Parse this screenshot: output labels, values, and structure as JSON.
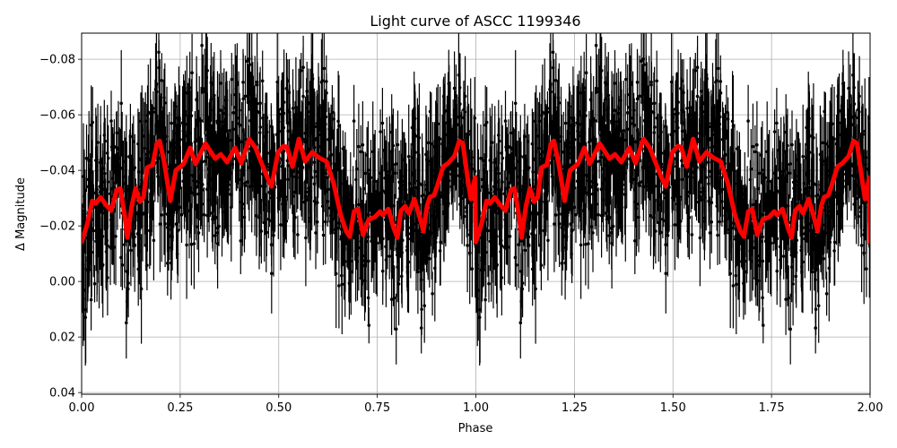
{
  "chart_data": {
    "type": "line",
    "title": "Light curve of ASCC 1199346",
    "xlabel": "Phase",
    "ylabel": "Δ Magnitude",
    "xlim": [
      0.0,
      2.0
    ],
    "ylim": [
      0.0406,
      -0.0894
    ],
    "y_inverted": true,
    "grid": true,
    "legend": null,
    "xticks": [
      "0.00",
      "0.25",
      "0.50",
      "0.75",
      "1.00",
      "1.25",
      "1.50",
      "1.75",
      "2.00"
    ],
    "xtick_values": [
      0.0,
      0.25,
      0.5,
      0.75,
      1.0,
      1.25,
      1.5,
      1.75,
      2.0
    ],
    "yticks": [
      "−0.08",
      "−0.06",
      "−0.04",
      "−0.02",
      "0.00",
      "0.02",
      "0.04"
    ],
    "ytick_values": [
      -0.08,
      -0.06,
      -0.04,
      -0.02,
      0.0,
      0.02,
      0.04
    ],
    "series": [
      {
        "name": "observations",
        "style": "black points with vertical error bars",
        "color": "#000000",
        "description": "Dense scatter of ~thousands of phase-folded photometric points spanning roughly -0.09 to +0.04 mag with error bars, repeated over two phase cycles",
        "approx_range": [
          -0.09,
          0.04
        ]
      },
      {
        "name": "smoothed model",
        "style": "thick red line",
        "color": "#ff0000",
        "period_repeat": true,
        "phase": [
          0.0,
          0.014,
          0.027,
          0.036,
          0.048,
          0.061,
          0.075,
          0.089,
          0.098,
          0.109,
          0.116,
          0.127,
          0.137,
          0.148,
          0.157,
          0.166,
          0.18,
          0.191,
          0.198,
          0.209,
          0.225,
          0.239,
          0.259,
          0.275,
          0.289,
          0.314,
          0.339,
          0.353,
          0.369,
          0.389,
          0.405,
          0.425,
          0.441,
          0.471,
          0.482,
          0.498,
          0.512,
          0.521,
          0.535,
          0.551,
          0.567,
          0.585,
          0.603,
          0.621,
          0.639,
          0.657,
          0.671,
          0.68,
          0.691,
          0.701,
          0.714,
          0.728,
          0.744,
          0.757,
          0.764,
          0.778,
          0.792,
          0.801,
          0.81,
          0.821,
          0.83,
          0.844,
          0.855,
          0.867,
          0.876,
          0.883,
          0.894,
          0.901,
          0.917,
          0.93,
          0.946,
          0.958,
          0.967,
          0.978,
          0.987,
          0.998
        ],
        "values": [
          -0.0142,
          -0.0206,
          -0.029,
          -0.0281,
          -0.0303,
          -0.0277,
          -0.0255,
          -0.0329,
          -0.0335,
          -0.0239,
          -0.0158,
          -0.0271,
          -0.0335,
          -0.0287,
          -0.0303,
          -0.041,
          -0.0419,
          -0.0497,
          -0.0506,
          -0.0432,
          -0.029,
          -0.04,
          -0.0423,
          -0.0481,
          -0.0423,
          -0.0497,
          -0.0442,
          -0.0458,
          -0.0429,
          -0.0481,
          -0.0426,
          -0.0513,
          -0.0481,
          -0.0374,
          -0.0342,
          -0.0465,
          -0.0487,
          -0.0484,
          -0.0413,
          -0.0513,
          -0.0432,
          -0.0465,
          -0.0445,
          -0.0432,
          -0.0355,
          -0.0239,
          -0.0181,
          -0.0161,
          -0.0252,
          -0.0261,
          -0.0168,
          -0.0223,
          -0.0232,
          -0.0252,
          -0.0239,
          -0.0261,
          -0.019,
          -0.0158,
          -0.0255,
          -0.0271,
          -0.0245,
          -0.0297,
          -0.0245,
          -0.0181,
          -0.0271,
          -0.0303,
          -0.031,
          -0.0339,
          -0.0413,
          -0.0426,
          -0.0452,
          -0.0506,
          -0.0497,
          -0.0384,
          -0.0297,
          -0.0374
        ]
      }
    ]
  }
}
